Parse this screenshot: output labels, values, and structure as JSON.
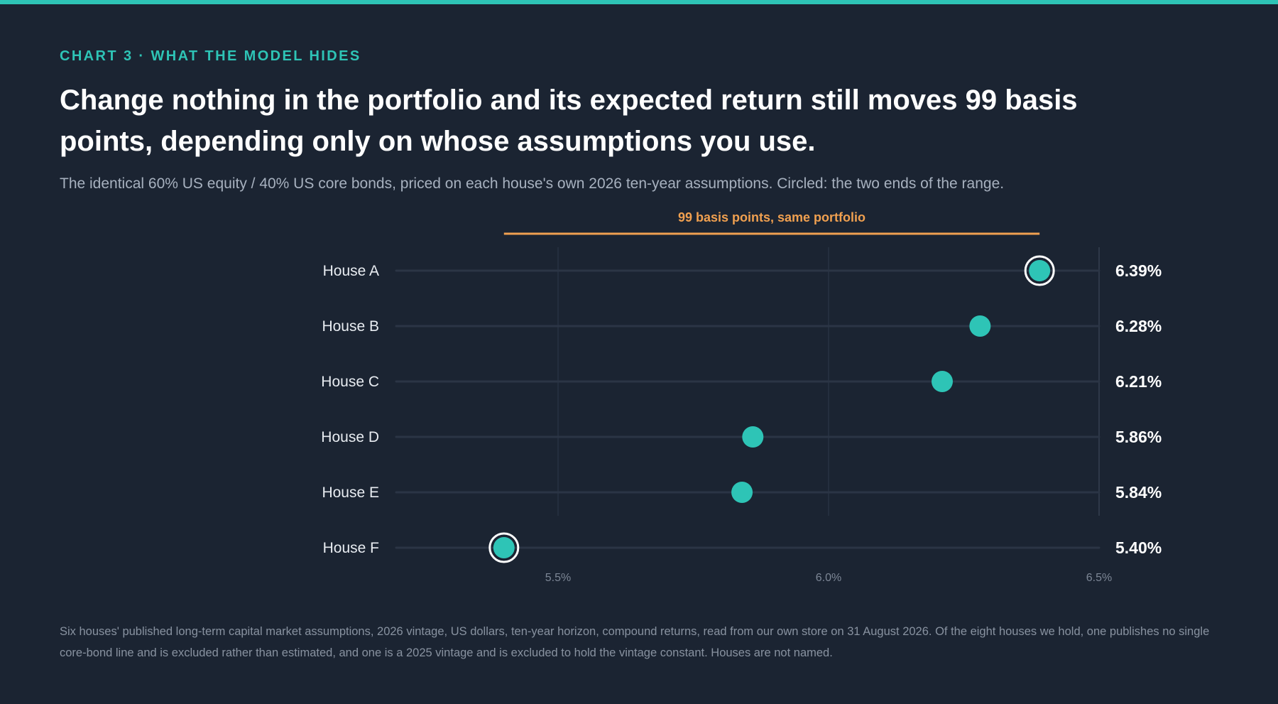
{
  "header": {
    "eyebrow": "CHART 3 · WHAT THE MODEL HIDES",
    "headline": "Change nothing in the portfolio and its expected return still moves 99 basis points, depending only on whose assumptions you use.",
    "subtitle": "The identical 60% US equity / 40% US core bonds, priced on each house's own 2026 ten-year assumptions. Circled: the two ends of the range."
  },
  "footnote": "Six houses' published long-term capital market assumptions, 2026 vintage, US dollars, ten-year horizon, compound returns, read from our own store on 31 August 2026. Of the eight houses we hold, one publishes no single core-bond line and is excluded rather than estimated, and one is a 2025 vintage and is excluded to hold the vintage constant. Houses are not named.",
  "colors": {
    "background": "#1b2432",
    "accent": "#2ec4b6",
    "range_annotation": "#f0a050",
    "value_label": "#ffffff",
    "category_label": "#e8ecf1",
    "tick_label": "#7d8796"
  },
  "chart_data": {
    "type": "scatter",
    "subtype": "dot-plot",
    "categories": [
      "House A",
      "House B",
      "House C",
      "House D",
      "House E",
      "House F"
    ],
    "values": [
      6.39,
      6.28,
      6.21,
      5.86,
      5.84,
      5.4
    ],
    "value_labels": [
      "6.39%",
      "6.28%",
      "6.21%",
      "5.86%",
      "5.84%",
      "5.40%"
    ],
    "highlighted": [
      "House A",
      "House F"
    ],
    "xlim": [
      5.2,
      6.5
    ],
    "xticks": [
      5.5,
      6.0,
      6.5
    ],
    "xtick_labels": [
      "5.5%",
      "6.0%",
      "6.5%"
    ],
    "range_annotation": {
      "label": "99 basis points, same portfolio",
      "from": 5.4,
      "to": 6.39
    },
    "grid": true
  }
}
